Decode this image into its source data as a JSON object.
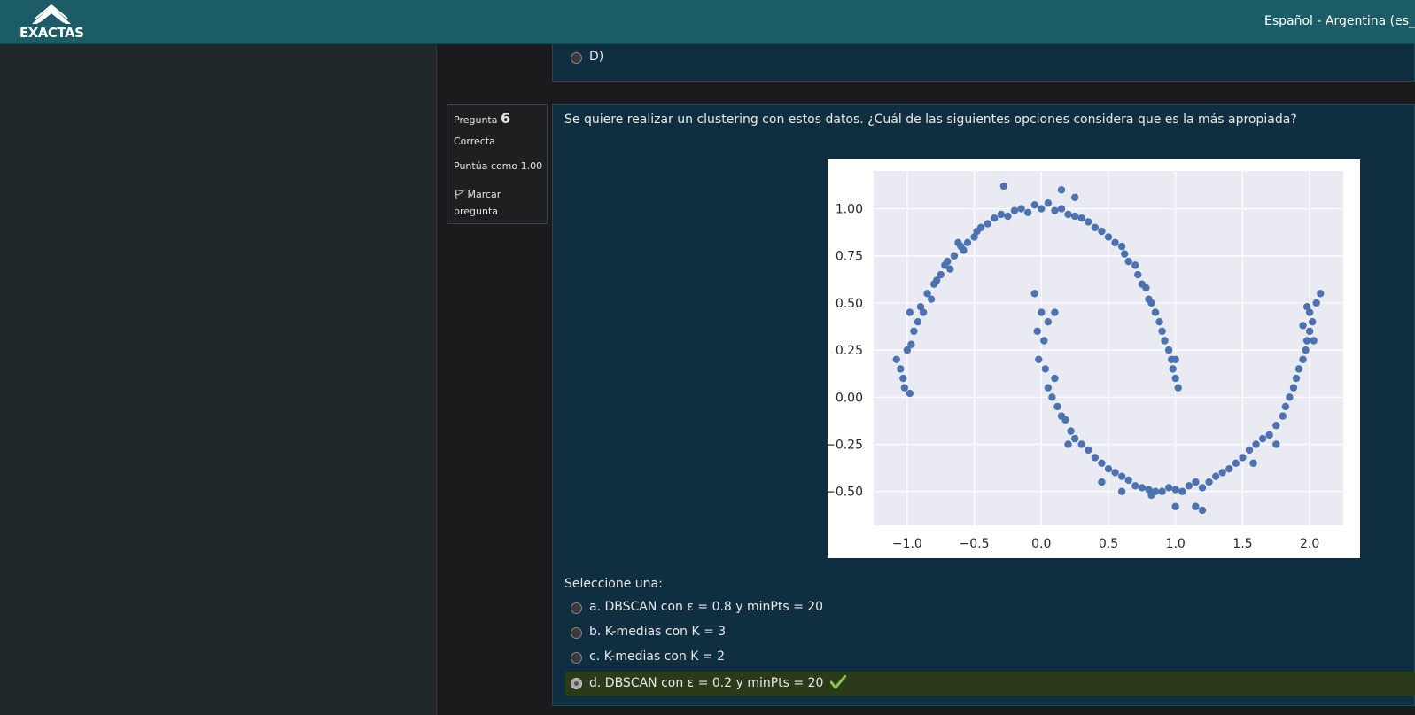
{
  "header": {
    "logo_text": "EXACTAS",
    "language": "Español - Argentina (es_ar"
  },
  "previous_question": {
    "option_label": "D)"
  },
  "question_info": {
    "label": "Pregunta",
    "number": "6",
    "status": "Correcta",
    "score": "Puntúa como 1.00",
    "flag_label_1": "Marcar",
    "flag_label_2": "pregunta"
  },
  "question": {
    "text": "Se quiere realizar un clustering con estos datos. ¿Cuál de las siguientes opciones considera que es la más apropiada?",
    "select_label": "Seleccione una:",
    "options": [
      {
        "label": "a. DBSCAN con ε = 0.8 y minPts = 20",
        "selected": false
      },
      {
        "label": "b. K-medias con K = 3",
        "selected": false
      },
      {
        "label": "c. K-medias con K = 2",
        "selected": false
      },
      {
        "label": "d. DBSCAN con ε = 0.2 y minPts = 20",
        "selected": true,
        "correct": true
      }
    ]
  },
  "colors": {
    "header": "#1c5c66",
    "card": "#0f2e40",
    "point": "#4c72b0",
    "plot_bg": "#eaeaf2",
    "check": "#8bc34a"
  },
  "chart_data": {
    "type": "scatter",
    "xlim": [
      -1.25,
      2.25
    ],
    "ylim": [
      -0.68,
      1.2
    ],
    "x_ticks": [
      "−1.0",
      "−0.5",
      "0.0",
      "0.5",
      "1.0",
      "1.5",
      "2.0"
    ],
    "x_tick_values": [
      -1.0,
      -0.5,
      0.0,
      0.5,
      1.0,
      1.5,
      2.0
    ],
    "y_ticks": [
      "−0.50",
      "−0.25",
      "0.00",
      "0.25",
      "0.50",
      "0.75",
      "1.00"
    ],
    "y_tick_values": [
      -0.5,
      -0.25,
      0.0,
      0.25,
      0.5,
      0.75,
      1.0
    ],
    "grid": true,
    "series": [
      {
        "description": "two interleaving half-moons, noise 0.05",
        "points": [
          [
            -1.02,
            0.05
          ],
          [
            -1.05,
            0.15
          ],
          [
            -0.98,
            0.02
          ],
          [
            -1.0,
            0.25
          ],
          [
            -0.95,
            0.35
          ],
          [
            -0.97,
            0.28
          ],
          [
            -1.03,
            0.1
          ],
          [
            -0.92,
            0.4
          ],
          [
            -0.9,
            0.48
          ],
          [
            -0.88,
            0.45
          ],
          [
            -0.85,
            0.55
          ],
          [
            -0.82,
            0.52
          ],
          [
            -0.8,
            0.6
          ],
          [
            -0.78,
            0.62
          ],
          [
            -0.75,
            0.65
          ],
          [
            -0.72,
            0.7
          ],
          [
            -0.7,
            0.72
          ],
          [
            -0.68,
            0.68
          ],
          [
            -0.65,
            0.75
          ],
          [
            -0.6,
            0.8
          ],
          [
            -0.58,
            0.78
          ],
          [
            -0.55,
            0.82
          ],
          [
            -0.5,
            0.85
          ],
          [
            -0.48,
            0.88
          ],
          [
            -0.45,
            0.9
          ],
          [
            -0.4,
            0.92
          ],
          [
            -0.35,
            0.95
          ],
          [
            -0.3,
            0.97
          ],
          [
            -0.25,
            0.96
          ],
          [
            -0.2,
            0.99
          ],
          [
            -0.15,
            1.0
          ],
          [
            -0.1,
            0.98
          ],
          [
            -0.05,
            1.02
          ],
          [
            0.0,
            1.0
          ],
          [
            0.05,
            1.03
          ],
          [
            0.1,
            0.99
          ],
          [
            0.15,
            1.0
          ],
          [
            0.2,
            0.97
          ],
          [
            0.25,
            0.96
          ],
          [
            0.3,
            0.95
          ],
          [
            0.35,
            0.93
          ],
          [
            0.4,
            0.9
          ],
          [
            0.45,
            0.88
          ],
          [
            0.5,
            0.85
          ],
          [
            0.55,
            0.82
          ],
          [
            0.6,
            0.8
          ],
          [
            0.62,
            0.76
          ],
          [
            0.65,
            0.72
          ],
          [
            0.7,
            0.7
          ],
          [
            0.72,
            0.65
          ],
          [
            0.75,
            0.6
          ],
          [
            0.78,
            0.58
          ],
          [
            0.8,
            0.52
          ],
          [
            0.82,
            0.5
          ],
          [
            0.85,
            0.45
          ],
          [
            0.88,
            0.4
          ],
          [
            0.9,
            0.35
          ],
          [
            0.92,
            0.3
          ],
          [
            0.95,
            0.25
          ],
          [
            0.97,
            0.2
          ],
          [
            0.98,
            0.15
          ],
          [
            1.0,
            0.1
          ],
          [
            1.02,
            0.05
          ],
          [
            1.0,
            0.2
          ],
          [
            -0.28,
            1.12
          ],
          [
            0.15,
            1.1
          ],
          [
            -1.08,
            0.2
          ],
          [
            -0.98,
            0.45
          ],
          [
            0.25,
            1.06
          ],
          [
            -0.62,
            0.82
          ],
          [
            -0.05,
            0.55
          ],
          [
            0.0,
            0.45
          ],
          [
            -0.03,
            0.35
          ],
          [
            0.02,
            0.3
          ],
          [
            0.05,
            0.4
          ],
          [
            -0.02,
            0.2
          ],
          [
            0.03,
            0.15
          ],
          [
            0.05,
            0.05
          ],
          [
            0.08,
            0.0
          ],
          [
            0.1,
            0.1
          ],
          [
            0.12,
            -0.05
          ],
          [
            0.15,
            -0.1
          ],
          [
            0.18,
            -0.12
          ],
          [
            0.22,
            -0.18
          ],
          [
            0.25,
            -0.22
          ],
          [
            0.3,
            -0.25
          ],
          [
            0.35,
            -0.28
          ],
          [
            0.4,
            -0.32
          ],
          [
            0.45,
            -0.35
          ],
          [
            0.5,
            -0.38
          ],
          [
            0.55,
            -0.4
          ],
          [
            0.6,
            -0.42
          ],
          [
            0.65,
            -0.44
          ],
          [
            0.7,
            -0.47
          ],
          [
            0.75,
            -0.48
          ],
          [
            0.8,
            -0.49
          ],
          [
            0.85,
            -0.5
          ],
          [
            0.9,
            -0.5
          ],
          [
            0.95,
            -0.48
          ],
          [
            1.0,
            -0.49
          ],
          [
            1.05,
            -0.5
          ],
          [
            1.1,
            -0.47
          ],
          [
            1.15,
            -0.45
          ],
          [
            1.2,
            -0.48
          ],
          [
            1.25,
            -0.45
          ],
          [
            1.3,
            -0.42
          ],
          [
            1.35,
            -0.4
          ],
          [
            1.4,
            -0.38
          ],
          [
            1.45,
            -0.35
          ],
          [
            1.5,
            -0.32
          ],
          [
            1.55,
            -0.28
          ],
          [
            1.6,
            -0.25
          ],
          [
            1.65,
            -0.22
          ],
          [
            1.7,
            -0.2
          ],
          [
            1.75,
            -0.15
          ],
          [
            1.8,
            -0.1
          ],
          [
            1.82,
            -0.05
          ],
          [
            1.85,
            0.0
          ],
          [
            1.88,
            0.05
          ],
          [
            1.9,
            0.1
          ],
          [
            1.92,
            0.15
          ],
          [
            1.95,
            0.2
          ],
          [
            1.97,
            0.25
          ],
          [
            1.98,
            0.3
          ],
          [
            2.0,
            0.35
          ],
          [
            2.02,
            0.4
          ],
          [
            2.0,
            0.45
          ],
          [
            2.05,
            0.5
          ],
          [
            2.08,
            0.55
          ],
          [
            1.95,
            0.38
          ],
          [
            1.98,
            0.48
          ],
          [
            2.03,
            0.3
          ],
          [
            1.0,
            -0.58
          ],
          [
            1.15,
            -0.58
          ],
          [
            1.2,
            -0.6
          ],
          [
            0.82,
            -0.52
          ],
          [
            0.6,
            -0.5
          ],
          [
            0.45,
            -0.45
          ],
          [
            1.58,
            -0.35
          ],
          [
            1.75,
            -0.25
          ],
          [
            0.1,
            0.45
          ],
          [
            0.2,
            -0.25
          ]
        ]
      }
    ]
  }
}
